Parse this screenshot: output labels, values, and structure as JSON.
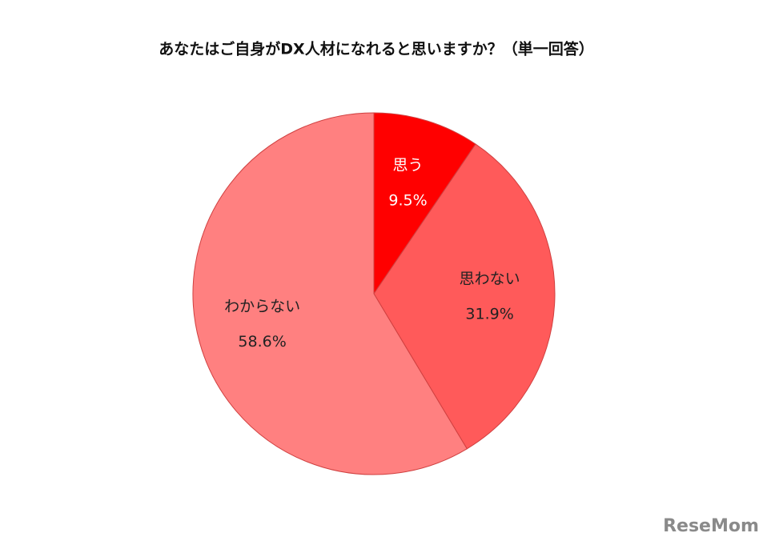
{
  "chart_data": {
    "type": "pie",
    "title": "あなたはご自身がDX人材になれると思いますか？（単一回答）",
    "categories": [
      "思う",
      "思わない",
      "わからない"
    ],
    "values": [
      9.5,
      31.9,
      58.6
    ],
    "value_labels": [
      "9.5%",
      "31.9%",
      "58.6%"
    ],
    "colors": [
      "#ff0000",
      "#ff5a5a",
      "#ff8080"
    ],
    "label_colors": [
      "#ffffff",
      "#222222",
      "#222222"
    ]
  },
  "watermark": "ReseMom"
}
